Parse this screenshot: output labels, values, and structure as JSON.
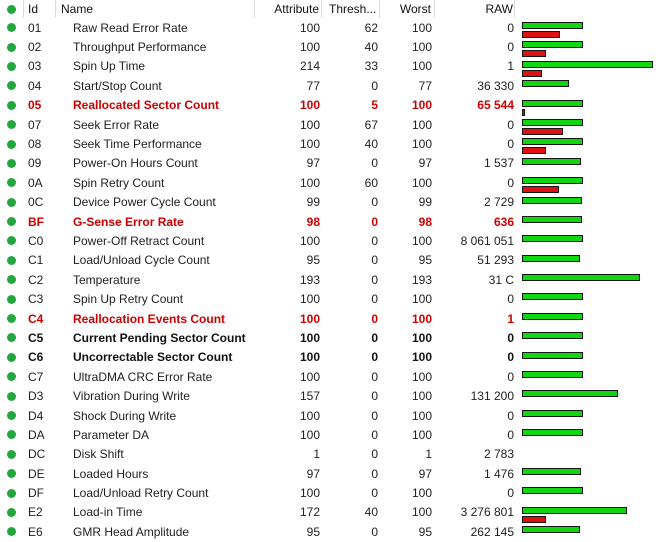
{
  "header": {
    "id": "Id",
    "name": "Name",
    "attribute": "Attribute",
    "threshold": "Thresh...",
    "worst": "Worst",
    "raw": "RAW"
  },
  "colors": {
    "status_ok_dot": "#21a73e",
    "attribute_bar": "#0fd60f",
    "threshold_bar": "#dd1111",
    "alert_text": "#cc0000",
    "normal_text": "#1e1e1e"
  },
  "icons": {
    "status_ok": "green-dot"
  },
  "rows": [
    {
      "id": "01",
      "name": "Raw Read Error Rate",
      "attribute": 100,
      "threshold": 62,
      "worst": 100,
      "raw": "0",
      "style": "normal"
    },
    {
      "id": "02",
      "name": "Throughput Performance",
      "attribute": 100,
      "threshold": 40,
      "worst": 100,
      "raw": "0",
      "style": "normal"
    },
    {
      "id": "03",
      "name": "Spin Up Time",
      "attribute": 214,
      "threshold": 33,
      "worst": 100,
      "raw": "1",
      "style": "normal"
    },
    {
      "id": "04",
      "name": "Start/Stop Count",
      "attribute": 77,
      "threshold": 0,
      "worst": 77,
      "raw": "36 330",
      "style": "normal"
    },
    {
      "id": "05",
      "name": "Reallocated Sector Count",
      "attribute": 100,
      "threshold": 5,
      "worst": 100,
      "raw": "65 544",
      "style": "alert"
    },
    {
      "id": "07",
      "name": "Seek Error Rate",
      "attribute": 100,
      "threshold": 67,
      "worst": 100,
      "raw": "0",
      "style": "normal"
    },
    {
      "id": "08",
      "name": "Seek Time Performance",
      "attribute": 100,
      "threshold": 40,
      "worst": 100,
      "raw": "0",
      "style": "normal"
    },
    {
      "id": "09",
      "name": "Power-On Hours Count",
      "attribute": 97,
      "threshold": 0,
      "worst": 97,
      "raw": "1 537",
      "style": "normal"
    },
    {
      "id": "0A",
      "name": "Spin Retry Count",
      "attribute": 100,
      "threshold": 60,
      "worst": 100,
      "raw": "0",
      "style": "normal"
    },
    {
      "id": "0C",
      "name": "Device Power Cycle Count",
      "attribute": 99,
      "threshold": 0,
      "worst": 99,
      "raw": "2 729",
      "style": "normal"
    },
    {
      "id": "BF",
      "name": "G-Sense Error Rate",
      "attribute": 98,
      "threshold": 0,
      "worst": 98,
      "raw": "636",
      "style": "alert"
    },
    {
      "id": "C0",
      "name": "Power-Off Retract Count",
      "attribute": 100,
      "threshold": 0,
      "worst": 100,
      "raw": "8 061 051",
      "style": "normal"
    },
    {
      "id": "C1",
      "name": "Load/Unload Cycle Count",
      "attribute": 95,
      "threshold": 0,
      "worst": 95,
      "raw": "51 293",
      "style": "normal"
    },
    {
      "id": "C2",
      "name": "Temperature",
      "attribute": 193,
      "threshold": 0,
      "worst": 193,
      "raw": "31 C",
      "style": "normal"
    },
    {
      "id": "C3",
      "name": "Spin Up Retry Count",
      "attribute": 100,
      "threshold": 0,
      "worst": 100,
      "raw": "0",
      "style": "normal"
    },
    {
      "id": "C4",
      "name": "Reallocation Events Count",
      "attribute": 100,
      "threshold": 0,
      "worst": 100,
      "raw": "1",
      "style": "alert"
    },
    {
      "id": "C5",
      "name": "Current Pending Sector Count",
      "attribute": 100,
      "threshold": 0,
      "worst": 100,
      "raw": "0",
      "style": "bold"
    },
    {
      "id": "C6",
      "name": "Uncorrectable Sector Count",
      "attribute": 100,
      "threshold": 0,
      "worst": 100,
      "raw": "0",
      "style": "bold"
    },
    {
      "id": "C7",
      "name": "UltraDMA CRC Error Rate",
      "attribute": 100,
      "threshold": 0,
      "worst": 100,
      "raw": "0",
      "style": "normal"
    },
    {
      "id": "D3",
      "name": "Vibration During Write",
      "attribute": 157,
      "threshold": 0,
      "worst": 100,
      "raw": "131 200",
      "style": "normal"
    },
    {
      "id": "D4",
      "name": "Shock During Write",
      "attribute": 100,
      "threshold": 0,
      "worst": 100,
      "raw": "0",
      "style": "normal"
    },
    {
      "id": "DA",
      "name": "Parameter DA",
      "attribute": 100,
      "threshold": 0,
      "worst": 100,
      "raw": "0",
      "style": "normal"
    },
    {
      "id": "DC",
      "name": "Disk Shift",
      "attribute": 1,
      "threshold": 0,
      "worst": 1,
      "raw": "2 783",
      "style": "normal"
    },
    {
      "id": "DE",
      "name": "Loaded Hours",
      "attribute": 97,
      "threshold": 0,
      "worst": 97,
      "raw": "1 476",
      "style": "normal"
    },
    {
      "id": "DF",
      "name": "Load/Unload Retry Count",
      "attribute": 100,
      "threshold": 0,
      "worst": 100,
      "raw": "0",
      "style": "normal"
    },
    {
      "id": "E2",
      "name": "Load-in Time",
      "attribute": 172,
      "threshold": 40,
      "worst": 100,
      "raw": "3 276 801",
      "style": "normal"
    },
    {
      "id": "E6",
      "name": "GMR Head Amplitude",
      "attribute": 95,
      "threshold": 0,
      "worst": 95,
      "raw": "262 145",
      "style": "normal"
    }
  ]
}
